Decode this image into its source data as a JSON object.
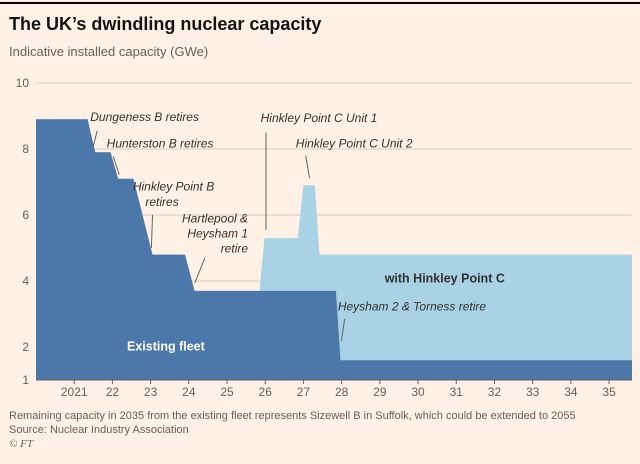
{
  "colors": {
    "background": "#fff1e5",
    "rule": "#000000",
    "title": "#161412",
    "text": "#33302e",
    "muted": "#66605c",
    "axis": "#66605c",
    "grid": "#d9ccbf",
    "existing_fleet": "#4c77a9",
    "with_hpc": "#a9d3e5",
    "label_on_dark": "#ffffff"
  },
  "footer": {
    "note": "Remaining capacity in 2035 from the existing fleet represents Sizewell B in Suffolk, which could be extended to 2055",
    "source": "Source: Nuclear Industry Association",
    "credit": "© FT"
  },
  "chart_data": {
    "type": "area",
    "title": "The UK’s dwindling nuclear capacity",
    "subtitle": "Indicative installed capacity (GWe)",
    "xlim": [
      2020.0,
      2035.6
    ],
    "ylim": [
      1,
      10
    ],
    "y_ticks": [
      1,
      2,
      4,
      6,
      8,
      10
    ],
    "x_ticks": [
      {
        "v": 2021,
        "label": "2021"
      },
      {
        "v": 2022,
        "label": "22"
      },
      {
        "v": 2023,
        "label": "23"
      },
      {
        "v": 2024,
        "label": "24"
      },
      {
        "v": 2025,
        "label": "25"
      },
      {
        "v": 2026,
        "label": "26"
      },
      {
        "v": 2027,
        "label": "27"
      },
      {
        "v": 2028,
        "label": "28"
      },
      {
        "v": 2029,
        "label": "29"
      },
      {
        "v": 2030,
        "label": "30"
      },
      {
        "v": 2031,
        "label": "31"
      },
      {
        "v": 2032,
        "label": "32"
      },
      {
        "v": 2033,
        "label": "33"
      },
      {
        "v": 2034,
        "label": "34"
      },
      {
        "v": 2035,
        "label": "35"
      }
    ],
    "grid": true,
    "legend": "inline-labels",
    "series": [
      {
        "id": "with-hinkley-point-c",
        "name": "with Hinkley Point C",
        "color_key": "with_hpc",
        "points": [
          [
            2020.0,
            8.9
          ],
          [
            2021.35,
            8.9
          ],
          [
            2021.55,
            7.9
          ],
          [
            2021.95,
            7.9
          ],
          [
            2022.15,
            7.1
          ],
          [
            2022.55,
            7.1
          ],
          [
            2023.05,
            4.8
          ],
          [
            2023.9,
            4.8
          ],
          [
            2024.15,
            3.7
          ],
          [
            2025.85,
            3.7
          ],
          [
            2025.98,
            5.3
          ],
          [
            2026.85,
            5.3
          ],
          [
            2027.0,
            6.9
          ],
          [
            2027.3,
            6.9
          ],
          [
            2027.42,
            4.8
          ],
          [
            2035.6,
            4.8
          ]
        ]
      },
      {
        "id": "existing-fleet",
        "name": "Existing fleet",
        "color_key": "existing_fleet",
        "points": [
          [
            2020.0,
            8.9
          ],
          [
            2021.35,
            8.9
          ],
          [
            2021.55,
            7.9
          ],
          [
            2021.95,
            7.9
          ],
          [
            2022.15,
            7.1
          ],
          [
            2022.55,
            7.1
          ],
          [
            2023.05,
            4.8
          ],
          [
            2023.9,
            4.8
          ],
          [
            2024.15,
            3.7
          ],
          [
            2027.85,
            3.7
          ],
          [
            2027.97,
            1.6
          ],
          [
            2035.6,
            1.6
          ]
        ]
      }
    ],
    "annotations": [
      {
        "name": "annotation-dungeness-b-retires",
        "anchor": "start",
        "style": "italic",
        "lines": [
          {
            "text": "Dungeness B retires",
            "x": 2021.42,
            "y": 8.85
          }
        ],
        "leader": [
          2021.6,
          8.55,
          2021.5,
          8.08
        ]
      },
      {
        "name": "annotation-hunterston-b-retires",
        "anchor": "start",
        "style": "italic",
        "lines": [
          {
            "text": "Hunterston B retires",
            "x": 2021.85,
            "y": 8.05
          }
        ],
        "leader": [
          2022.02,
          7.78,
          2022.18,
          7.22
        ]
      },
      {
        "name": "annotation-hinkley-point-b-retires",
        "anchor": "middle",
        "style": "italic",
        "lines": [
          {
            "text": "Hinkley Point B",
            "x": 2023.6,
            "y": 6.75
          },
          {
            "text": "retires",
            "x": 2023.3,
            "y": 6.28
          }
        ],
        "leader": [
          2023.05,
          6.0,
          2023.02,
          5.0
        ]
      },
      {
        "name": "annotation-hartlepool-heysham-1-retire",
        "anchor": "end",
        "style": "italic",
        "lines": [
          {
            "text": "Hartlepool &",
            "x": 2025.55,
            "y": 5.78
          },
          {
            "text": "Heysham 1",
            "x": 2025.55,
            "y": 5.32
          },
          {
            "text": "retire",
            "x": 2025.55,
            "y": 4.86
          }
        ],
        "leader": [
          2024.42,
          4.7,
          2024.16,
          3.95
        ]
      },
      {
        "name": "annotation-hinkley-point-c-unit-1",
        "anchor": "start",
        "style": "italic",
        "lines": [
          {
            "text": "Hinkley Point C Unit 1",
            "x": 2025.88,
            "y": 8.82
          }
        ],
        "leader": [
          2026.02,
          8.5,
          2026.02,
          5.55
        ]
      },
      {
        "name": "annotation-hinkley-point-c-unit-2",
        "anchor": "start",
        "style": "italic",
        "lines": [
          {
            "text": "Hinkley Point C Unit 2",
            "x": 2026.8,
            "y": 8.05
          }
        ],
        "leader": [
          2027.06,
          7.8,
          2027.16,
          7.12
        ]
      },
      {
        "name": "annotation-heysham-2-torness-retire",
        "anchor": "start",
        "style": "italic",
        "lines": [
          {
            "text": "Heysham 2 & Torness retire",
            "x": 2027.9,
            "y": 3.1
          }
        ],
        "leader": [
          2028.08,
          2.85,
          2027.99,
          2.18
        ]
      },
      {
        "name": "label-existing-fleet",
        "anchor": "middle",
        "weight": "bold",
        "color": "label_on_dark",
        "size": 12.5,
        "lines": [
          {
            "text": "Existing fleet",
            "x": 2023.4,
            "y": 1.9
          }
        ]
      },
      {
        "name": "label-with-hinkley-point-c",
        "anchor": "middle",
        "weight": "bold",
        "size": 12.5,
        "lines": [
          {
            "text": "with Hinkley Point C",
            "x": 2030.7,
            "y": 3.95
          }
        ]
      }
    ]
  }
}
